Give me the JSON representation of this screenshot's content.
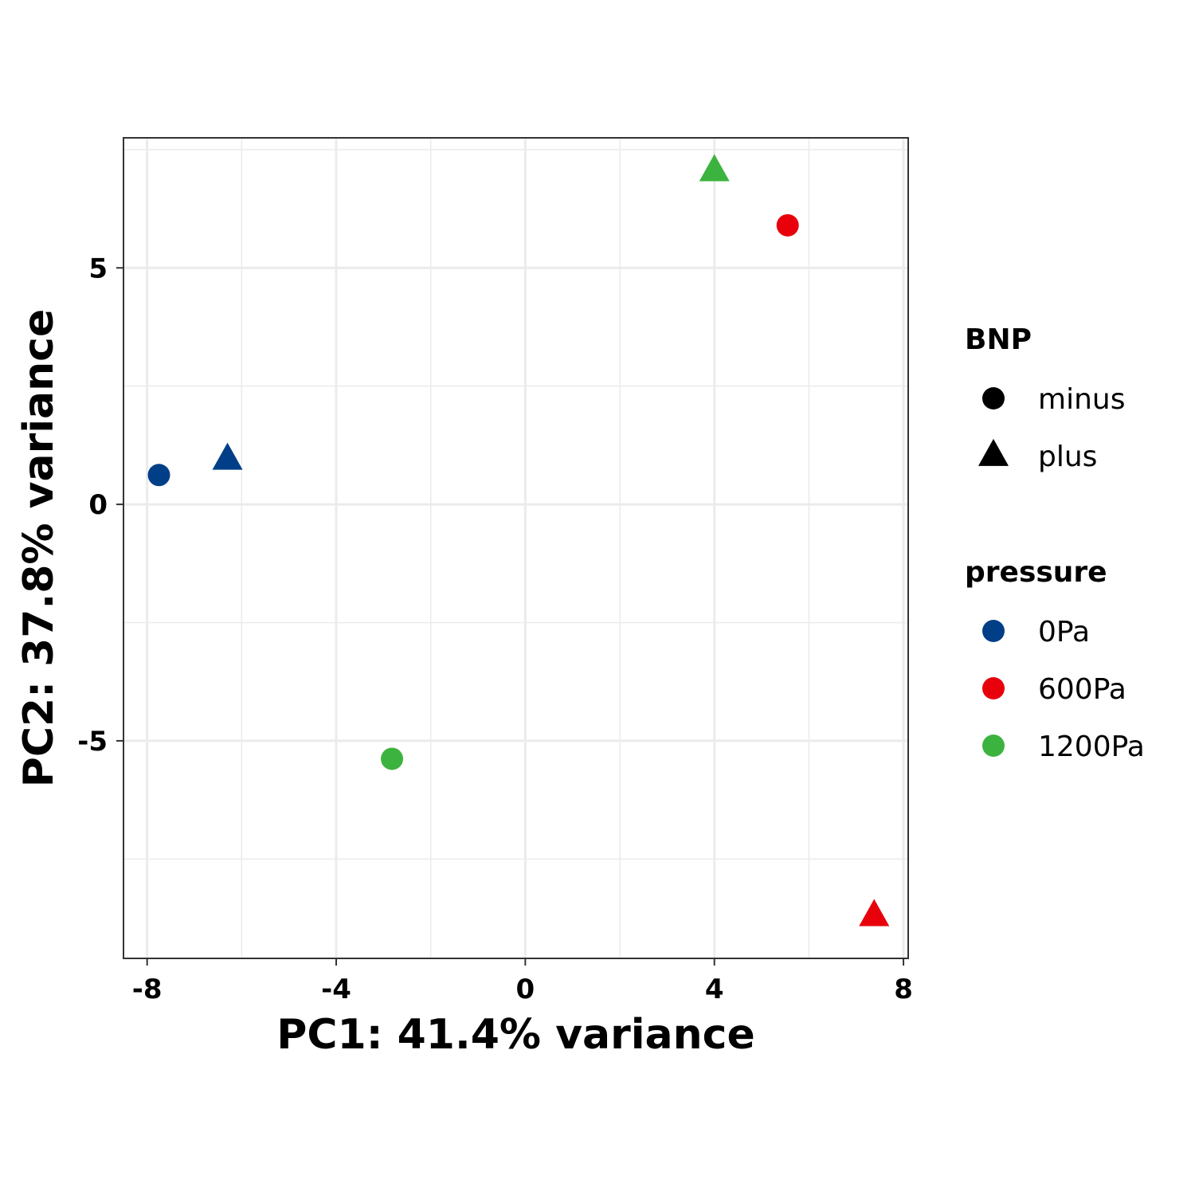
{
  "chart_data": {
    "type": "scatter",
    "title": "",
    "xlabel": "PC1: 41.4% variance",
    "ylabel": "PC2: 37.8% variance",
    "xlim": [
      -8.5,
      8.1
    ],
    "ylim": [
      -9.6,
      7.75
    ],
    "x_ticks": [
      -8,
      -4,
      0,
      4,
      8
    ],
    "x_tick_labels": [
      "-8",
      "-4",
      "0",
      "4",
      "8"
    ],
    "y_ticks": [
      -5,
      0,
      5
    ],
    "y_tick_labels": [
      "-5",
      "0",
      "5"
    ],
    "x_minor": [
      -6,
      -2,
      2,
      6
    ],
    "y_minor": [
      -7.5,
      -2.5,
      2.5,
      7.5
    ],
    "grid": true,
    "legend_position": "right",
    "legends": [
      {
        "title": "BNP",
        "entries": [
          {
            "label": "minus",
            "shape": "circle"
          },
          {
            "label": "plus",
            "shape": "triangle"
          }
        ]
      },
      {
        "title": "pressure",
        "entries": [
          {
            "label": "0Pa",
            "color": "#003F87"
          },
          {
            "label": "600Pa",
            "color": "#E8000B"
          },
          {
            "label": "1200Pa",
            "color": "#3DB33F"
          }
        ]
      }
    ],
    "points": [
      {
        "x": -7.75,
        "y": 0.62,
        "BNP": "minus",
        "pressure": "0Pa"
      },
      {
        "x": -6.3,
        "y": 0.95,
        "BNP": "plus",
        "pressure": "0Pa"
      },
      {
        "x": -2.82,
        "y": -5.38,
        "BNP": "minus",
        "pressure": "1200Pa"
      },
      {
        "x": 4.0,
        "y": 7.05,
        "BNP": "plus",
        "pressure": "1200Pa"
      },
      {
        "x": 5.55,
        "y": 5.9,
        "BNP": "minus",
        "pressure": "600Pa"
      },
      {
        "x": 7.38,
        "y": -8.7,
        "BNP": "plus",
        "pressure": "600Pa"
      }
    ]
  }
}
